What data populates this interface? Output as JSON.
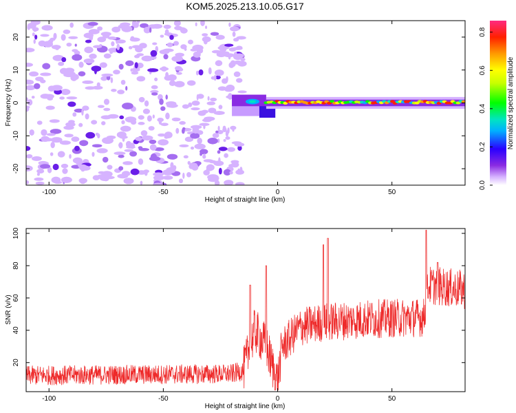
{
  "title": "KOM5.2025.213.10.05.G17",
  "colors": {
    "snr_line": "#ee2a2a",
    "axis": "#000000"
  },
  "chart_data": [
    {
      "type": "heatmap",
      "xlabel": "Height of straight line (km)",
      "ylabel": "Frequency (Hz)",
      "xlim": [
        -110,
        82
      ],
      "ylim": [
        -25,
        25
      ],
      "xticks": [
        -100,
        -50,
        0,
        50
      ],
      "yticks": [
        -20,
        -10,
        0,
        10,
        20
      ],
      "colorbar": {
        "label": "Normalized spectral amplitude",
        "ticks": [
          "0.0",
          "0.2",
          "0.4",
          "0.6",
          "0.8"
        ],
        "range": [
          0,
          0.86
        ]
      },
      "features": [
        {
          "x_range": [
            -110,
            -15
          ],
          "freq_range": [
            -25,
            25
          ],
          "amplitude": 0.1,
          "pattern": "noise"
        },
        {
          "x_range": [
            -20,
            -5
          ],
          "freq_range": [
            -4,
            2
          ],
          "amplitude": 0.35,
          "pattern": "blob"
        },
        {
          "x_range": [
            -5,
            82
          ],
          "freq_center": 0,
          "amplitude": 0.8,
          "pattern": "ridge"
        }
      ]
    },
    {
      "type": "line",
      "xlabel": "Height of straight line (km)",
      "ylabel": "SNR (v/v)",
      "xlim": [
        -110,
        82
      ],
      "ylim": [
        2,
        103
      ],
      "xticks": [
        -100,
        -50,
        0,
        50
      ],
      "yticks": [
        20,
        40,
        60,
        80,
        100
      ],
      "trend": [
        {
          "x": -110,
          "y": 12
        },
        {
          "x": -20,
          "y": 13
        },
        {
          "x": -15,
          "y": 15
        },
        {
          "x": -10,
          "y": 40
        },
        {
          "x": -5,
          "y": 30
        },
        {
          "x": 0,
          "y": 8
        },
        {
          "x": 2,
          "y": 30
        },
        {
          "x": 10,
          "y": 42
        },
        {
          "x": 20,
          "y": 45
        },
        {
          "x": 40,
          "y": 47
        },
        {
          "x": 64,
          "y": 48
        },
        {
          "x": 66,
          "y": 68
        },
        {
          "x": 82,
          "y": 65
        }
      ],
      "peaks": [
        {
          "x": -12,
          "y": 68
        },
        {
          "x": -5,
          "y": 80
        },
        {
          "x": 22,
          "y": 97
        },
        {
          "x": 20,
          "y": 93
        },
        {
          "x": 65,
          "y": 102
        },
        {
          "x": 70,
          "y": 82
        }
      ]
    }
  ]
}
